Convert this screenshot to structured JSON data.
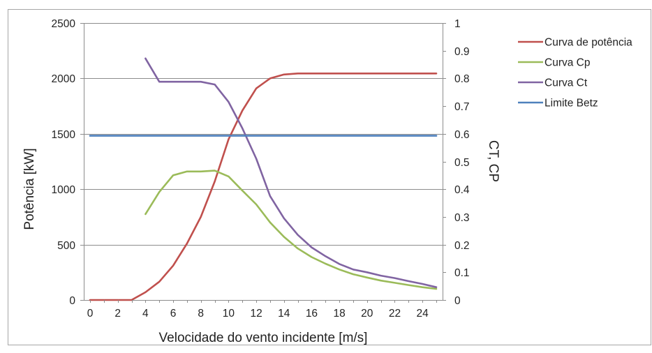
{
  "chart_data": {
    "type": "line",
    "title": "",
    "xlabel": "Velocidade do vento incidente [m/s]",
    "ylabel_left": "Potência [kW]",
    "ylabel_right": "CT, CP",
    "xlim": [
      0,
      25
    ],
    "ylim_left": [
      0,
      2500
    ],
    "ylim_right": [
      0,
      1
    ],
    "x_ticks": [
      "0",
      "2",
      "4",
      "6",
      "8",
      "10",
      "12",
      "14",
      "16",
      "18",
      "20",
      "22",
      "24"
    ],
    "y_left_ticks": [
      "0",
      "500",
      "1000",
      "1500",
      "2000",
      "2500"
    ],
    "y_right_ticks": [
      "0",
      "0.1",
      "0.2",
      "0.3",
      "0.4",
      "0.5",
      "0.6",
      "0.7",
      "0.8",
      "0.9",
      "1"
    ],
    "grid": true,
    "legend_position": "right",
    "series": [
      {
        "name": "Curva de potência",
        "axis": "left",
        "color": "#c0504d",
        "points": [
          [
            0,
            0
          ],
          [
            1,
            0
          ],
          [
            2,
            0
          ],
          [
            3,
            0
          ],
          [
            4,
            70
          ],
          [
            5,
            165
          ],
          [
            6,
            310
          ],
          [
            7,
            510
          ],
          [
            8,
            750
          ],
          [
            9,
            1070
          ],
          [
            10,
            1450
          ],
          [
            11,
            1710
          ],
          [
            12,
            1910
          ],
          [
            13,
            2000
          ],
          [
            14,
            2035
          ],
          [
            15,
            2045
          ],
          [
            16,
            2045
          ],
          [
            17,
            2045
          ],
          [
            18,
            2045
          ],
          [
            19,
            2045
          ],
          [
            20,
            2045
          ],
          [
            21,
            2045
          ],
          [
            22,
            2045
          ],
          [
            23,
            2045
          ],
          [
            24,
            2045
          ],
          [
            25,
            2045
          ]
        ]
      },
      {
        "name": "Curva Cp",
        "axis": "right",
        "color": "#9bbb59",
        "points": [
          [
            4,
            0.31
          ],
          [
            5,
            0.39
          ],
          [
            6,
            0.45
          ],
          [
            7,
            0.464
          ],
          [
            8,
            0.464
          ],
          [
            9,
            0.467
          ],
          [
            10,
            0.446
          ],
          [
            11,
            0.395
          ],
          [
            12,
            0.345
          ],
          [
            13,
            0.28
          ],
          [
            14,
            0.228
          ],
          [
            15,
            0.186
          ],
          [
            16,
            0.155
          ],
          [
            17,
            0.131
          ],
          [
            18,
            0.11
          ],
          [
            19,
            0.093
          ],
          [
            20,
            0.081
          ],
          [
            21,
            0.07
          ],
          [
            22,
            0.062
          ],
          [
            23,
            0.054
          ],
          [
            24,
            0.046
          ],
          [
            25,
            0.04
          ]
        ]
      },
      {
        "name": "Curva Ct",
        "axis": "right",
        "color": "#8064a2",
        "points": [
          [
            4,
            0.872
          ],
          [
            5,
            0.788
          ],
          [
            6,
            0.788
          ],
          [
            7,
            0.788
          ],
          [
            8,
            0.788
          ],
          [
            9,
            0.778
          ],
          [
            10,
            0.715
          ],
          [
            11,
            0.62
          ],
          [
            12,
            0.51
          ],
          [
            13,
            0.375
          ],
          [
            14,
            0.295
          ],
          [
            15,
            0.235
          ],
          [
            16,
            0.19
          ],
          [
            17,
            0.158
          ],
          [
            18,
            0.13
          ],
          [
            19,
            0.11
          ],
          [
            20,
            0.1
          ],
          [
            21,
            0.088
          ],
          [
            22,
            0.079
          ],
          [
            23,
            0.068
          ],
          [
            24,
            0.058
          ],
          [
            25,
            0.046
          ]
        ]
      },
      {
        "name": "Limite Betz",
        "axis": "right",
        "color": "#4f81bd",
        "points": [
          [
            0,
            0.593
          ],
          [
            25,
            0.593
          ]
        ]
      }
    ]
  }
}
